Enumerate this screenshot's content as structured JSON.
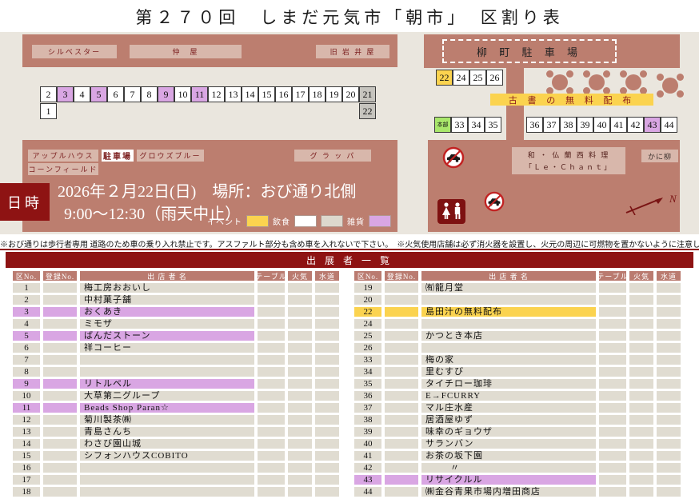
{
  "title": "第２７０回　しまだ元気市「朝市」　区割り表",
  "map": {
    "left": {
      "building_top_1": "シルベスター",
      "building_top_2": "仲　屋",
      "building_top_3": "旧 岩 井 屋",
      "row1_cells": [
        {
          "n": "2",
          "t": "w"
        },
        {
          "n": "3",
          "t": "p"
        },
        {
          "n": "4",
          "t": "w"
        },
        {
          "n": "5",
          "t": "p"
        },
        {
          "n": "6",
          "t": "w"
        },
        {
          "n": "7",
          "t": "w"
        },
        {
          "n": "8",
          "t": "w"
        },
        {
          "n": "9",
          "t": "p"
        },
        {
          "n": "10",
          "t": "w"
        },
        {
          "n": "11",
          "t": "p"
        },
        {
          "n": "12",
          "t": "w"
        },
        {
          "n": "13",
          "t": "w"
        },
        {
          "n": "14",
          "t": "w"
        },
        {
          "n": "15",
          "t": "w"
        },
        {
          "n": "16",
          "t": "w"
        },
        {
          "n": "17",
          "t": "w"
        },
        {
          "n": "18",
          "t": "w"
        },
        {
          "n": "19",
          "t": "w"
        },
        {
          "n": "20",
          "t": "w"
        },
        {
          "n": "21",
          "t": "g"
        }
      ],
      "cell_1": "1",
      "cell_22": "22",
      "label_apple": "アップルハウス",
      "label_corn": "コーンフィールド",
      "label_parking_small": "駐車場",
      "label_grows": "グロウズブルー",
      "label_grappa": "グ ラ ッ パ",
      "datetime_label": "日時",
      "date_line1": "2026年２月22日(日)　場所：おび通り北側",
      "date_line2": "9:00～12:30（雨天中止）",
      "legend": [
        {
          "label": "イベント",
          "swatches": [
            "#fbd34f"
          ]
        },
        {
          "label": "飲食",
          "swatches": [
            "#ffffff",
            "#ddd8cd"
          ]
        },
        {
          "label": "雑貨",
          "swatches": [
            "#d9a6e3"
          ]
        }
      ]
    },
    "right": {
      "parking_label": "柳 町 駐 車 場",
      "row1_cells": [
        {
          "n": "22",
          "t": "y"
        },
        {
          "n": "24",
          "t": "w"
        },
        {
          "n": "25",
          "t": "w"
        },
        {
          "n": "26",
          "t": "w"
        }
      ],
      "free_books": "古 書 の 無 料 配 布",
      "row2a_cells": [
        {
          "n": "本部",
          "t": "green",
          "s": 1
        },
        {
          "n": "33",
          "t": "w"
        },
        {
          "n": "34",
          "t": "w"
        },
        {
          "n": "35",
          "t": "w"
        }
      ],
      "row2b_cells": [
        {
          "n": "36",
          "t": "w"
        },
        {
          "n": "37",
          "t": "w"
        },
        {
          "n": "38",
          "t": "w"
        },
        {
          "n": "39",
          "t": "w"
        },
        {
          "n": "40",
          "t": "w"
        },
        {
          "n": "41",
          "t": "w"
        },
        {
          "n": "42",
          "t": "w"
        },
        {
          "n": "43",
          "t": "p"
        },
        {
          "n": "44",
          "t": "w"
        }
      ],
      "restaurant_line1": "和 ・ 仏 蘭 西 料 理",
      "restaurant_line2": "「Ｌｅ・Ｃｈａｎｔ」",
      "kani_label": "かに柳",
      "compass_n": "N"
    }
  },
  "notes": "※おび通りは歩行者専用 道路のため車の乗り入れ禁止です。アスファルト部分も含め車を入れないで下さい。　※火気使用店舗は必ず消火器を設置し、火元の周辺に可燃物を置かないように注意して下さい。",
  "table": {
    "title": "出 展 者 一 覧",
    "columns": [
      "区No.",
      "登録No.",
      "出 店 者 名",
      "テーブル",
      "火気",
      "水道"
    ],
    "left_rows": [
      {
        "no": "1",
        "name": "梅工房おおいし"
      },
      {
        "no": "2",
        "name": "中村菓子舗"
      },
      {
        "no": "3",
        "name": "おくあき",
        "h": "p"
      },
      {
        "no": "4",
        "name": "ミモザ"
      },
      {
        "no": "5",
        "name": "ばんだストーン",
        "h": "p"
      },
      {
        "no": "6",
        "name": "祥コーヒー"
      },
      {
        "no": "7",
        "name": ""
      },
      {
        "no": "8",
        "name": ""
      },
      {
        "no": "9",
        "name": "リトルベル",
        "h": "p"
      },
      {
        "no": "10",
        "name": "大草第二グループ"
      },
      {
        "no": "11",
        "name": "Beads Shop Paran☆",
        "h": "p"
      },
      {
        "no": "12",
        "name": "菊川製茶㈱"
      },
      {
        "no": "13",
        "name": "青島さんち"
      },
      {
        "no": "14",
        "name": "わさび園山城"
      },
      {
        "no": "15",
        "name": "シフォンハウスCOBITO"
      },
      {
        "no": "16",
        "name": ""
      },
      {
        "no": "17",
        "name": ""
      },
      {
        "no": "18",
        "name": ""
      }
    ],
    "right_rows": [
      {
        "no": "19",
        "name": "㈲龍月堂"
      },
      {
        "no": "20",
        "name": ""
      },
      {
        "no": "22",
        "name": "島田汁の無料配布",
        "h": "y"
      },
      {
        "no": "24",
        "name": ""
      },
      {
        "no": "25",
        "name": "かつとき本店"
      },
      {
        "no": "26",
        "name": ""
      },
      {
        "no": "33",
        "name": "梅の家"
      },
      {
        "no": "34",
        "name": "里むすび"
      },
      {
        "no": "35",
        "name": "タイチロー珈琲"
      },
      {
        "no": "36",
        "name": "E→FCURRY"
      },
      {
        "no": "37",
        "name": "マル庄水産"
      },
      {
        "no": "38",
        "name": "居酒屋ゆず"
      },
      {
        "no": "39",
        "name": "味幸のギョウザ"
      },
      {
        "no": "40",
        "name": "サランバン"
      },
      {
        "no": "41",
        "name": "お茶の坂下園"
      },
      {
        "no": "42",
        "name": "〃",
        "ind": true
      },
      {
        "no": "43",
        "name": "リサイクルル",
        "h": "p"
      },
      {
        "no": "44",
        "name": "㈱金谷青果市場内増田商店"
      }
    ]
  },
  "colors": {
    "accent_dark_red": "#8e1313",
    "rose_block": "#bc7e6f",
    "event_yellow": "#fbd34f",
    "goods_purple": "#d9a6e3",
    "hq_green": "#a9e76b",
    "reserved_gray": "#c6c4be"
  }
}
